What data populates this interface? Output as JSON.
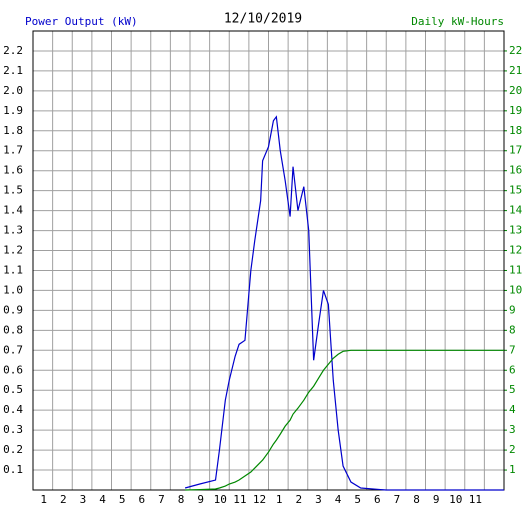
{
  "chart_data": {
    "type": "line",
    "title": "12/10/2019",
    "y_label": "Power Output (kW)",
    "y2_label": "Daily kW-Hours",
    "x": [
      7.75,
      8.5,
      9.3,
      9.5,
      9.8,
      10,
      10.3,
      10.5,
      10.8,
      11.1,
      11.3,
      11.6,
      11.7,
      12,
      12.25,
      12.4,
      12.6,
      12.85,
      13.1,
      13.25,
      13.5,
      13.8,
      14.05,
      14.3,
      14.55,
      14.8,
      15.05,
      15.3,
      15.55,
      15.8,
      16.2,
      16.7,
      18,
      24
    ],
    "series": [
      {
        "color": "#0000cc",
        "values": [
          0.01,
          0.03,
          0.05,
          0.2,
          0.45,
          0.55,
          0.67,
          0.73,
          0.75,
          1.1,
          1.25,
          1.45,
          1.65,
          1.72,
          1.85,
          1.87,
          1.7,
          1.55,
          1.37,
          1.62,
          1.4,
          1.52,
          1.3,
          0.65,
          0.83,
          1.0,
          0.93,
          0.55,
          0.3,
          0.12,
          0.04,
          0.01,
          0,
          0
        ]
      },
      {
        "color": "#008800",
        "axis": "y2",
        "values": [
          0,
          0.02,
          0.05,
          0.1,
          0.2,
          0.3,
          0.4,
          0.5,
          0.7,
          0.9,
          1.1,
          1.4,
          1.5,
          1.9,
          2.3,
          2.5,
          2.8,
          3.2,
          3.5,
          3.8,
          4.1,
          4.5,
          4.9,
          5.2,
          5.6,
          6.0,
          6.3,
          6.6,
          6.8,
          6.95,
          7.0,
          7.0,
          7.0,
          7.0
        ]
      }
    ],
    "xlim": [
      0,
      24
    ],
    "xticks": [
      1,
      2,
      3,
      4,
      5,
      6,
      7,
      8,
      9,
      10,
      11,
      12,
      {
        "value": 13,
        "label": "1"
      },
      {
        "value": 14,
        "label": "2"
      },
      {
        "value": 15,
        "label": "3"
      },
      {
        "value": 16,
        "label": "4"
      },
      {
        "value": 17,
        "label": "5"
      },
      {
        "value": 18,
        "label": "6"
      },
      {
        "value": 19,
        "label": "7"
      },
      {
        "value": 20,
        "label": "8"
      },
      {
        "value": 21,
        "label": "9"
      },
      {
        "value": 22,
        "label": "10"
      },
      {
        "value": 23,
        "label": "11"
      }
    ],
    "ylim": [
      0,
      2.3
    ],
    "yticks": [
      0.1,
      0.2,
      0.3,
      0.4,
      0.5,
      0.6,
      0.7,
      0.8,
      0.9,
      {
        "value": 1,
        "label": "1.0"
      },
      1.1,
      1.2,
      1.3,
      1.4,
      1.5,
      1.6,
      1.7,
      1.8,
      1.9,
      {
        "value": 2,
        "label": "2.0"
      },
      2.1,
      2.2
    ],
    "y2lim": [
      0,
      23
    ],
    "y2ticks": [
      1,
      2,
      3,
      4,
      5,
      6,
      7,
      8,
      9,
      10,
      11,
      12,
      13,
      14,
      15,
      16,
      17,
      18,
      19,
      20,
      21,
      22
    ],
    "grid": true
  }
}
